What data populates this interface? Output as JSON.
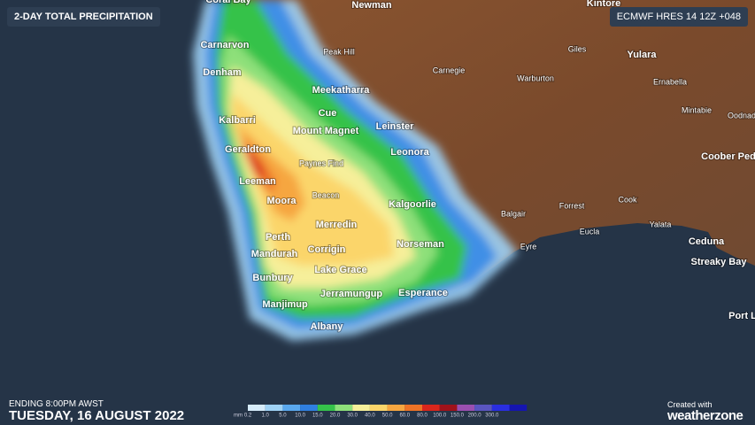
{
  "header": {
    "title": "2-DAY TOTAL PRECIPITATION",
    "model": "ECMWF HRES 14 12Z +048"
  },
  "places": [
    "Coral Bay",
    "Newman",
    "Kintore",
    "Carnarvon",
    "Peak Hill",
    "Giles",
    "Yulara",
    "Denham",
    "Carnegie",
    "Warburton",
    "Ernabella",
    "Meekatharra",
    "Mintabie",
    "Oodnad",
    "Kalbarri",
    "Cue",
    "Leinster",
    "Mount Magnet",
    "Geraldton",
    "Leonora",
    "Coober Ped",
    "Paynes Find",
    "Leeman",
    "Beacon",
    "Moora",
    "Kalgoorlie",
    "Balgair",
    "Forrest",
    "Cook",
    "Yalata",
    "Merredin",
    "Eucla",
    "Ceduna",
    "Perth",
    "Norseman",
    "Eyre",
    "Corrigin",
    "Mandurah",
    "Streaky Bay",
    "Lake Grace",
    "Bunbury",
    "Jerramungup",
    "Esperance",
    "Manjimup",
    "Port L",
    "Albany"
  ],
  "legend": {
    "unit": "mm",
    "labels": [
      "0.2",
      "1.0",
      "5.0",
      "10.0",
      "15.0",
      "20.0",
      "30.0",
      "40.0",
      "50.0",
      "60.0",
      "80.0",
      "100.0",
      "150.0",
      "200.0",
      "300.0"
    ],
    "colors": [
      "#d6ecfa",
      "#9fd2f5",
      "#5aa8ee",
      "#2f7fe0",
      "#35c24a",
      "#8ee07a",
      "#f6ef9a",
      "#fbd56a",
      "#f6a640",
      "#ee7326",
      "#d9261c",
      "#a0121a",
      "#9a4fb0",
      "#5a55c0",
      "#2a2ee0",
      "#1515b0"
    ]
  },
  "footer": {
    "ending": "ENDING 8:00PM AWST",
    "date": "TUESDAY, 16 AUGUST 2022",
    "created": "Created with",
    "brand": "weatherzone"
  }
}
